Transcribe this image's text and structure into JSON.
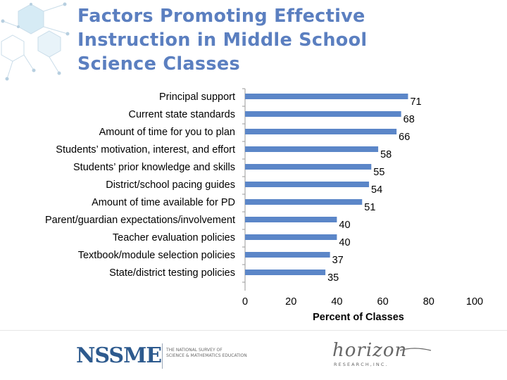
{
  "title_lines": [
    "Factors Promoting Effective",
    "Instruction in Middle School",
    "Science Classes"
  ],
  "colors": {
    "title": "#5b7fc0",
    "bar": "#5b86c8",
    "axis": "#9a9a9a",
    "text": "#000000"
  },
  "chart_data": {
    "type": "bar",
    "orientation": "horizontal",
    "categories": [
      "Principal support",
      "Current state standards",
      "Amount of time for you to plan",
      "Students’ motivation, interest, and effort",
      "Students’ prior knowledge and skills",
      "District/school pacing guides",
      "Amount of time available for PD",
      "Parent/guardian expectations/involvement",
      "Teacher evaluation policies",
      "Textbook/module selection policies",
      "State/district testing policies"
    ],
    "values": [
      71,
      68,
      66,
      58,
      55,
      54,
      51,
      40,
      40,
      37,
      35
    ],
    "xlabel": "Percent of Classes",
    "ylabel": "",
    "xlim": [
      0,
      100
    ],
    "xticks": [
      "0",
      "20",
      "40",
      "60",
      "80",
      "100"
    ],
    "data_labels": true,
    "grid": false,
    "legend": "none"
  },
  "footer": {
    "nssme": "NSSME",
    "nssme_sub": [
      "THE NATIONAL SURVEY OF",
      "SCIENCE & MATHEMATICS EDUCATION"
    ],
    "horizon": "horizon",
    "horizon_sub": "R E S E A R C H ,   I N C ."
  }
}
